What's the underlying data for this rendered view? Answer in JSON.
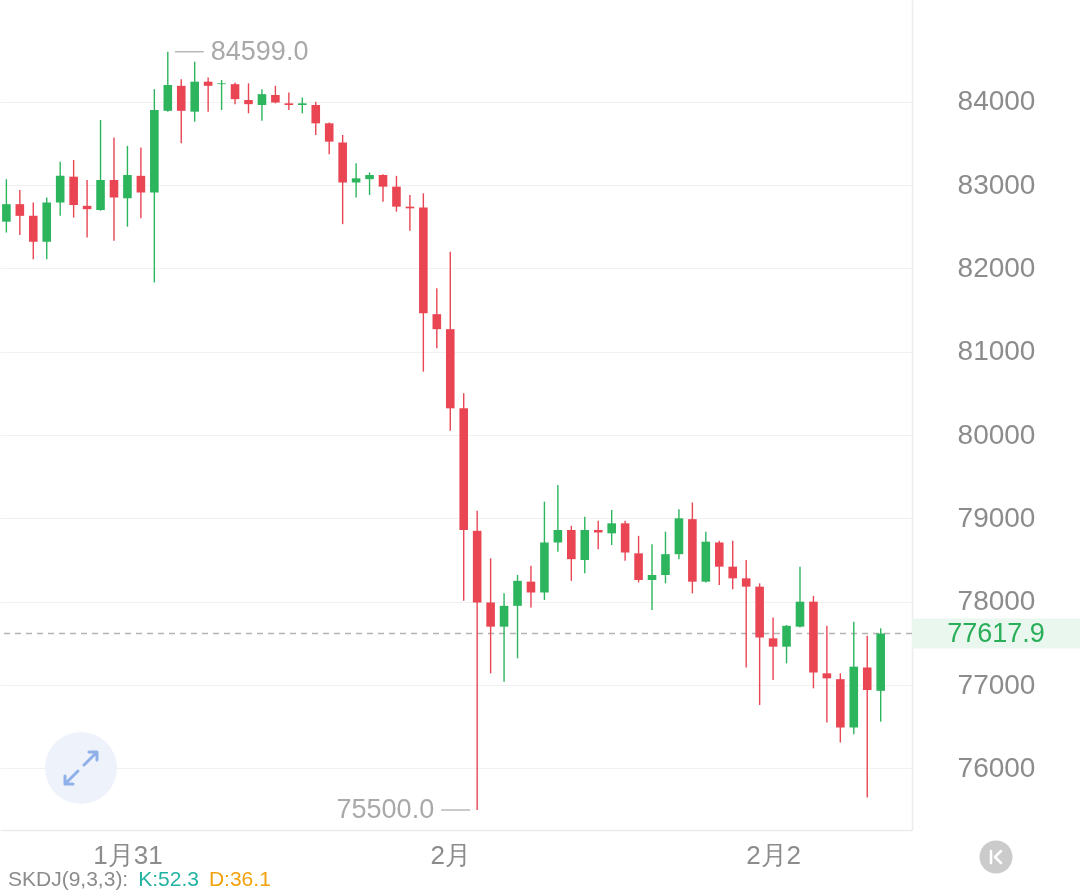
{
  "chart_data": {
    "type": "candlestick",
    "categories": [
      null,
      null,
      null,
      null,
      null,
      null,
      null,
      null,
      null,
      "1月31",
      null,
      null,
      null,
      null,
      null,
      null,
      null,
      null,
      null,
      null,
      null,
      null,
      null,
      null,
      null,
      null,
      null,
      null,
      null,
      null,
      null,
      null,
      null,
      "2月",
      null,
      null,
      null,
      null,
      null,
      null,
      null,
      null,
      null,
      null,
      null,
      null,
      null,
      null,
      null,
      null,
      null,
      null,
      null,
      null,
      null,
      null,
      null,
      "2月2",
      null,
      null,
      null,
      null,
      null,
      null,
      null,
      null
    ],
    "ohlc": [
      [
        82560,
        83070,
        82430,
        82770
      ],
      [
        82770,
        82940,
        82400,
        82630
      ],
      [
        82630,
        82790,
        82110,
        82320
      ],
      [
        82320,
        82850,
        82110,
        82790
      ],
      [
        82790,
        83280,
        82630,
        83110
      ],
      [
        83100,
        83300,
        82610,
        82760
      ],
      [
        82750,
        83060,
        82370,
        82710
      ],
      [
        82700,
        83780,
        82690,
        83060
      ],
      [
        83060,
        83570,
        82330,
        82850
      ],
      [
        82840,
        83470,
        82500,
        83120
      ],
      [
        83110,
        83450,
        82600,
        82910
      ],
      [
        82910,
        84150,
        81830,
        83900
      ],
      [
        83890,
        84599,
        83880,
        84200
      ],
      [
        84190,
        84270,
        83500,
        83890
      ],
      [
        83880,
        84480,
        83760,
        84240
      ],
      [
        84240,
        84290,
        83880,
        84190
      ],
      [
        84210,
        84260,
        83900,
        84220
      ],
      [
        84210,
        84230,
        83970,
        84030
      ],
      [
        84020,
        84220,
        83860,
        83970
      ],
      [
        83960,
        84150,
        83770,
        84090
      ],
      [
        84080,
        84190,
        83980,
        83990
      ],
      [
        83980,
        84110,
        83900,
        83960
      ],
      [
        83960,
        84050,
        83860,
        83980
      ],
      [
        83960,
        84000,
        83600,
        83740
      ],
      [
        83740,
        83750,
        83370,
        83520
      ],
      [
        83510,
        83600,
        82530,
        83030
      ],
      [
        83030,
        83260,
        82850,
        83080
      ],
      [
        83070,
        83150,
        82880,
        83120
      ],
      [
        83120,
        83130,
        82800,
        82980
      ],
      [
        82980,
        83110,
        82680,
        82740
      ],
      [
        82740,
        82880,
        82450,
        82720
      ],
      [
        82730,
        82900,
        80760,
        81460
      ],
      [
        81450,
        81760,
        81040,
        81270
      ],
      [
        81270,
        82200,
        80050,
        80320
      ],
      [
        80320,
        80500,
        78010,
        78860
      ],
      [
        78850,
        79090,
        75500,
        77990
      ],
      [
        77990,
        78520,
        77140,
        77700
      ],
      [
        77700,
        78100,
        77040,
        77950
      ],
      [
        77950,
        78320,
        77320,
        78250
      ],
      [
        78240,
        78430,
        77930,
        78110
      ],
      [
        78110,
        79200,
        78020,
        78710
      ],
      [
        78710,
        79400,
        78600,
        78860
      ],
      [
        78860,
        78910,
        78250,
        78510
      ],
      [
        78500,
        79020,
        78340,
        78860
      ],
      [
        78860,
        78970,
        78630,
        78830
      ],
      [
        78820,
        79100,
        78680,
        78940
      ],
      [
        78940,
        78970,
        78490,
        78590
      ],
      [
        78580,
        78790,
        78230,
        78260
      ],
      [
        78260,
        78690,
        77900,
        78320
      ],
      [
        78320,
        78840,
        78220,
        78570
      ],
      [
        78570,
        79110,
        78510,
        79000
      ],
      [
        78990,
        79190,
        78100,
        78240
      ],
      [
        78240,
        78840,
        78230,
        78720
      ],
      [
        78710,
        78730,
        78200,
        78420
      ],
      [
        78420,
        78730,
        78150,
        78280
      ],
      [
        78280,
        78500,
        77210,
        78180
      ],
      [
        78180,
        78220,
        76760,
        77570
      ],
      [
        77560,
        77810,
        77060,
        77460
      ],
      [
        77460,
        77720,
        77260,
        77710
      ],
      [
        77700,
        78420,
        77690,
        78000
      ],
      [
        78000,
        78070,
        76960,
        77150
      ],
      [
        77140,
        77710,
        76550,
        77080
      ],
      [
        77070,
        77140,
        76310,
        76490
      ],
      [
        76490,
        77760,
        76410,
        77220
      ],
      [
        77210,
        77590,
        75650,
        76940
      ],
      [
        76930,
        77680,
        76560,
        77617.9
      ]
    ],
    "colors": [
      "#2db55d",
      "#e94553",
      "#e94553",
      "#2db55d",
      "#2db55d",
      "#e94553",
      "#e94553",
      "#2db55d",
      "#e94553",
      "#2db55d",
      "#e94553",
      "#2db55d",
      "#2db55d",
      "#e94553",
      "#2db55d",
      "#e94553",
      "#2db55d",
      "#e94553",
      "#e94553",
      "#2db55d",
      "#e94553",
      "#e94553",
      "#2db55d",
      "#e94553",
      "#e94553",
      "#e94553",
      "#2db55d",
      "#2db55d",
      "#e94553",
      "#e94553",
      "#e94553",
      "#e94553",
      "#e94553",
      "#e94553",
      "#e94553",
      "#e94553",
      "#e94553",
      "#2db55d",
      "#2db55d",
      "#e94553",
      "#2db55d",
      "#2db55d",
      "#e94553",
      "#2db55d",
      "#e94553",
      "#2db55d",
      "#e94553",
      "#e94553",
      "#2db55d",
      "#2db55d",
      "#2db55d",
      "#e94553",
      "#2db55d",
      "#e94553",
      "#e94553",
      "#e94553",
      "#e94553",
      "#e94553",
      "#2db55d",
      "#2db55d",
      "#e94553",
      "#e94553",
      "#e94553",
      "#2db55d",
      "#e94553",
      "#2db55d"
    ],
    "ylim": [
      75260,
      85220
    ],
    "yticks": [
      76000,
      77000,
      78000,
      79000,
      80000,
      81000,
      82000,
      83000,
      84000
    ],
    "grid": "y",
    "ref_lines": [
      {
        "axis": "y",
        "value": 77617.9,
        "label": "77617.9",
        "color": "#b3b3b3",
        "line_style": "dashed"
      }
    ],
    "annotations": [
      "84599.0",
      "75500.0",
      "SKDJ(9,3,3):",
      "K:52.3",
      "D:36.1"
    ]
  }
}
